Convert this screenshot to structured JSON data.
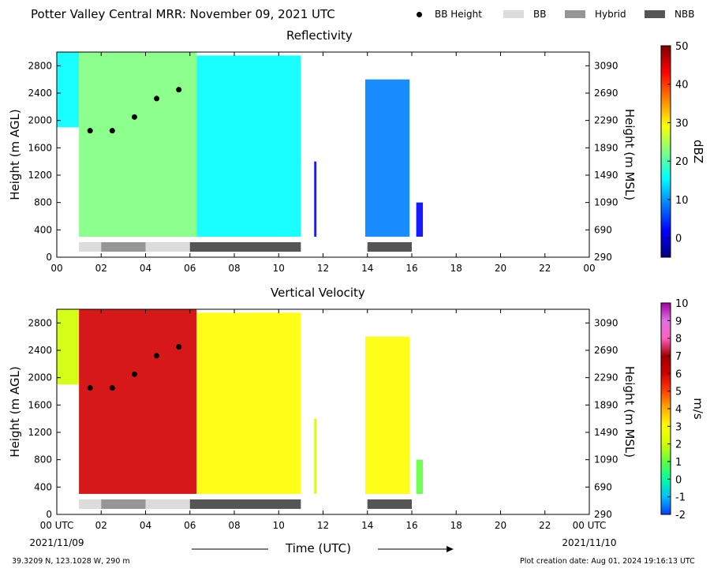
{
  "title": "Potter Valley Central MRR:  November 09, 2021 UTC",
  "legend": [
    {
      "label": "BB Height",
      "kind": "marker",
      "color": "#000000"
    },
    {
      "label": "BB",
      "kind": "swatch",
      "color": "#dcdcdc"
    },
    {
      "label": "Hybrid",
      "kind": "swatch",
      "color": "#969696"
    },
    {
      "label": "NBB",
      "kind": "swatch",
      "color": "#555555"
    }
  ],
  "footer": {
    "location": "39.3209 N, 123.1028 W, 290 m",
    "created": "Plot creation date: Aug 01, 2024 19:16:13 UTC",
    "xlabel": "Time (UTC)"
  },
  "chart_data": [
    {
      "type": "heatmap",
      "title": "Reflectivity",
      "xlabel": "",
      "ylabel": "Height (m AGL)",
      "y2label": "Height (m MSL)",
      "xlim": [
        0,
        24
      ],
      "ylim": [
        0,
        3000
      ],
      "xticks": [
        "00",
        "02",
        "04",
        "06",
        "08",
        "10",
        "12",
        "14",
        "16",
        "18",
        "20",
        "22",
        "00"
      ],
      "yticks": [
        0,
        400,
        800,
        1200,
        1600,
        2000,
        2400,
        2800
      ],
      "y2ticks": [
        290,
        690,
        1090,
        1490,
        1890,
        2290,
        2690,
        3090
      ],
      "colorbar": {
        "label": "dBZ",
        "min": -5,
        "max": 50,
        "ticks": [
          0,
          10,
          20,
          30,
          40,
          50
        ],
        "colors": [
          "#00007f",
          "#0000ff",
          "#0080ff",
          "#00ffff",
          "#80ff80",
          "#ffff00",
          "#ff8000",
          "#ff0000",
          "#7f0000"
        ]
      },
      "bb_height": [
        {
          "x": 1.5,
          "y": 1850
        },
        {
          "x": 2.5,
          "y": 1850
        },
        {
          "x": 3.5,
          "y": 2050
        },
        {
          "x": 4.5,
          "y": 2320
        },
        {
          "x": 5.5,
          "y": 2450
        }
      ],
      "bb_type_bar": [
        {
          "start": 1,
          "end": 2,
          "type": "BB"
        },
        {
          "start": 2,
          "end": 4,
          "type": "Hybrid"
        },
        {
          "start": 4,
          "end": 6,
          "type": "BB"
        },
        {
          "start": 6,
          "end": 11,
          "type": "NBB"
        },
        {
          "start": 14,
          "end": 16,
          "type": "NBB"
        }
      ],
      "echo_regions": [
        {
          "start": 0,
          "end": 1,
          "top": 3000,
          "base": 1900,
          "value": 13
        },
        {
          "start": 1,
          "end": 6.3,
          "top": 3000,
          "base": 300,
          "value": 22
        },
        {
          "start": 6.3,
          "end": 11,
          "top": 2950,
          "base": 300,
          "value": 14
        },
        {
          "start": 11.6,
          "end": 11.7,
          "top": 1400,
          "base": 300,
          "value": 5
        },
        {
          "start": 13.9,
          "end": 15.9,
          "top": 2600,
          "base": 300,
          "value": 9
        },
        {
          "start": 16.2,
          "end": 16.5,
          "top": 800,
          "base": 300,
          "value": 5
        }
      ]
    },
    {
      "type": "heatmap",
      "title": "Vertical Velocity",
      "xlabel": "Time (UTC)",
      "ylabel": "Height (m AGL)",
      "y2label": "Height (m MSL)",
      "xlim": [
        0,
        24
      ],
      "ylim": [
        0,
        3000
      ],
      "xticks": [
        "00 UTC",
        "02",
        "04",
        "06",
        "08",
        "10",
        "12",
        "14",
        "16",
        "18",
        "20",
        "22",
        "00 UTC"
      ],
      "xdates": {
        "start": "2021/11/09",
        "end": "2021/11/10"
      },
      "yticks": [
        0,
        400,
        800,
        1200,
        1600,
        2000,
        2400,
        2800
      ],
      "y2ticks": [
        290,
        690,
        1090,
        1490,
        1890,
        2290,
        2690,
        3090
      ],
      "colorbar": {
        "label": "m/s",
        "min": -2,
        "max": 10,
        "ticks": [
          -2,
          -1,
          0,
          1,
          2,
          3,
          4,
          5,
          6,
          7,
          8,
          9,
          10
        ],
        "colors": [
          "#0040ff",
          "#00c0ff",
          "#00ffa0",
          "#60ff40",
          "#d0ff00",
          "#ffff00",
          "#ffb000",
          "#ff4000",
          "#d00000",
          "#a00000",
          "#ff60c0",
          "#e070e0",
          "#a000a0"
        ]
      },
      "bb_height": [
        {
          "x": 1.5,
          "y": 1850
        },
        {
          "x": 2.5,
          "y": 1850
        },
        {
          "x": 3.5,
          "y": 2050
        },
        {
          "x": 4.5,
          "y": 2320
        },
        {
          "x": 5.5,
          "y": 2450
        }
      ],
      "bb_type_bar": [
        {
          "start": 1,
          "end": 2,
          "type": "BB"
        },
        {
          "start": 2,
          "end": 4,
          "type": "Hybrid"
        },
        {
          "start": 4,
          "end": 6,
          "type": "BB"
        },
        {
          "start": 6,
          "end": 11,
          "type": "NBB"
        },
        {
          "start": 14,
          "end": 16,
          "type": "NBB"
        }
      ],
      "echo_regions": [
        {
          "start": 0,
          "end": 1,
          "top": 3000,
          "base": 1900,
          "value": 2
        },
        {
          "start": 1,
          "end": 6.3,
          "top": 3000,
          "base": 300,
          "value": 6
        },
        {
          "start": 6.3,
          "end": 11,
          "top": 2950,
          "base": 300,
          "value": 3
        },
        {
          "start": 11.6,
          "end": 11.7,
          "top": 1400,
          "base": 300,
          "value": 2
        },
        {
          "start": 13.9,
          "end": 15.9,
          "top": 2600,
          "base": 300,
          "value": 2.5
        },
        {
          "start": 16.2,
          "end": 16.5,
          "top": 800,
          "base": 300,
          "value": 1
        }
      ]
    }
  ]
}
